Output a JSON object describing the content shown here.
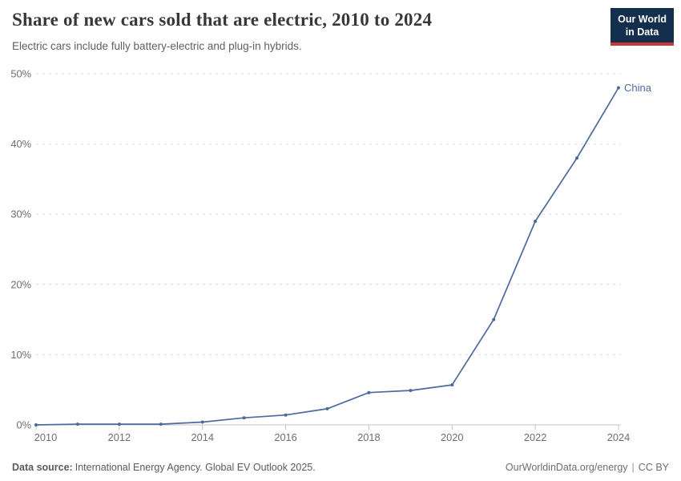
{
  "header": {
    "title": "Share of new cars sold that are electric, 2010 to 2024",
    "subtitle": "Electric cars include fully battery-electric and plug-in hybrids."
  },
  "logo": {
    "line1": "Our World",
    "line2": "in Data"
  },
  "chart_data": {
    "type": "line",
    "title": "Share of new cars sold that are electric, 2010 to 2024",
    "subtitle": "Electric cars include fully battery-electric and plug-in hybrids.",
    "xlabel": "",
    "ylabel": "",
    "x": [
      2010,
      2011,
      2012,
      2013,
      2014,
      2015,
      2016,
      2017,
      2018,
      2019,
      2020,
      2021,
      2022,
      2023,
      2024
    ],
    "series": [
      {
        "name": "China",
        "color": "#4C6A9C",
        "values": [
          0,
          0.1,
          0.1,
          0.1,
          0.4,
          1.0,
          1.4,
          2.3,
          4.6,
          4.9,
          5.7,
          15,
          29,
          38,
          48
        ]
      }
    ],
    "ylim": [
      0,
      50
    ],
    "yticks": [
      0,
      10,
      20,
      30,
      40,
      50
    ],
    "ytick_suffix": "%",
    "xticks": [
      2010,
      2012,
      2014,
      2016,
      2018,
      2020,
      2022,
      2024
    ],
    "grid": "horizontal-dashed",
    "legend": "end-of-line-label"
  },
  "footer": {
    "source_label": "Data source:",
    "source_text": "International Energy Agency. Global EV Outlook 2025.",
    "credit": "OurWorldinData.org/energy",
    "separator": "|",
    "license": "CC BY"
  },
  "colors": {
    "accent": "#4C6A9C",
    "logo_bg": "#142e4d",
    "logo_red": "#c53a34",
    "grid": "#dcdcdc",
    "axis": "#c3c3c3",
    "tick_text": "#6e6e6e",
    "text_gray": "#5b5b5b"
  }
}
